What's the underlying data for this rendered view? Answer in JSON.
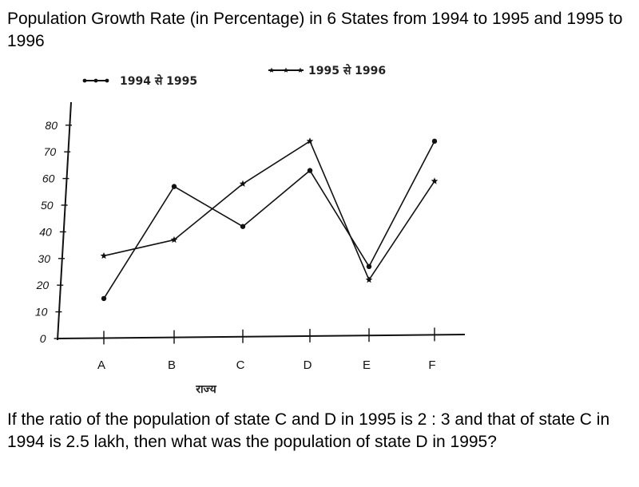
{
  "question": {
    "title": "Population Growth Rate (in Percentage) in 6 States from 1994 to 1995 and 1995 to 1996",
    "text": "If the ratio of the population of state C and D in 1995 is 2 : 3 and that of state C in 1994 is 2.5 lakh, then what was the population of state D in 1995?"
  },
  "chart_data": {
    "type": "line",
    "title": "",
    "xlabel": "राज्य",
    "ylabel": "",
    "categories": [
      "A",
      "B",
      "C",
      "D",
      "E",
      "F"
    ],
    "ylim": [
      0,
      80
    ],
    "yticks": [
      0,
      10,
      20,
      30,
      40,
      50,
      60,
      70,
      80
    ],
    "grid": false,
    "legend_position": "top",
    "series": [
      {
        "name": "1994 से 1995",
        "marker": "dot",
        "values": [
          15,
          57,
          42,
          63,
          27,
          74
        ]
      },
      {
        "name": "1995 से 1996",
        "marker": "star",
        "values": [
          31,
          37,
          58,
          74,
          22,
          59
        ]
      }
    ]
  }
}
